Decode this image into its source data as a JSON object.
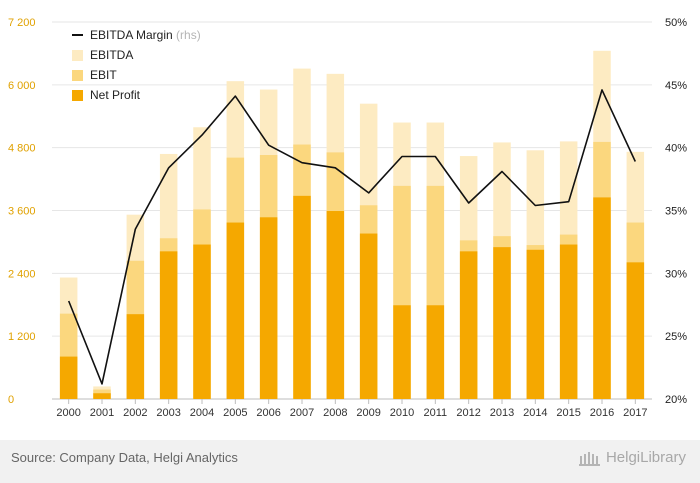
{
  "chart_data": {
    "type": "bar",
    "title": "",
    "xlabel": "",
    "ylabel": "",
    "ylim": [
      0,
      7200
    ],
    "y2lim": [
      20,
      50
    ],
    "y_ticks": [
      "0",
      "1 200",
      "2 400",
      "3 600",
      "4 800",
      "6 000",
      "7 200"
    ],
    "y2_ticks": [
      "20%",
      "25%",
      "30%",
      "35%",
      "40%",
      "45%",
      "50%"
    ],
    "categories": [
      "2000",
      "2001",
      "2002",
      "2003",
      "2004",
      "2005",
      "2006",
      "2007",
      "2008",
      "2009",
      "2010",
      "2011",
      "2012",
      "2013",
      "2014",
      "2015",
      "2016",
      "2017"
    ],
    "series": [
      {
        "name": "EBITDA",
        "kind": "bar",
        "color": "#fdebc2",
        "values": [
          2320,
          240,
          3520,
          4680,
          5190,
          6070,
          5910,
          6310,
          6210,
          5640,
          5280,
          5280,
          4640,
          4900,
          4750,
          4920,
          6650,
          4720
        ]
      },
      {
        "name": "EBIT",
        "kind": "bar",
        "color": "#fbd77e",
        "values": [
          1630,
          180,
          2640,
          3070,
          3620,
          4610,
          4660,
          4860,
          4710,
          3700,
          4070,
          4070,
          3030,
          3110,
          2940,
          3140,
          4910,
          3370
        ]
      },
      {
        "name": "Net Profit",
        "kind": "bar",
        "color": "#f5a800",
        "values": [
          810,
          110,
          1620,
          2820,
          2950,
          3370,
          3470,
          3880,
          3590,
          3160,
          1790,
          1790,
          2820,
          2900,
          2850,
          2950,
          3850,
          2610
        ]
      },
      {
        "name": "EBITDA Margin",
        "axis_note": "(rhs)",
        "kind": "line",
        "axis": "right",
        "color": "#111111",
        "values": [
          27.8,
          21.2,
          33.5,
          38.4,
          41.0,
          44.1,
          40.2,
          38.8,
          38.4,
          36.4,
          39.3,
          39.3,
          35.6,
          38.1,
          35.4,
          35.7,
          44.6,
          38.9
        ]
      }
    ],
    "legend_position": "top-left",
    "grid": "horizontal"
  },
  "footer": {
    "source": "Source: Company Data, Helgi Analytics",
    "brand": "HelgiLibrary"
  }
}
